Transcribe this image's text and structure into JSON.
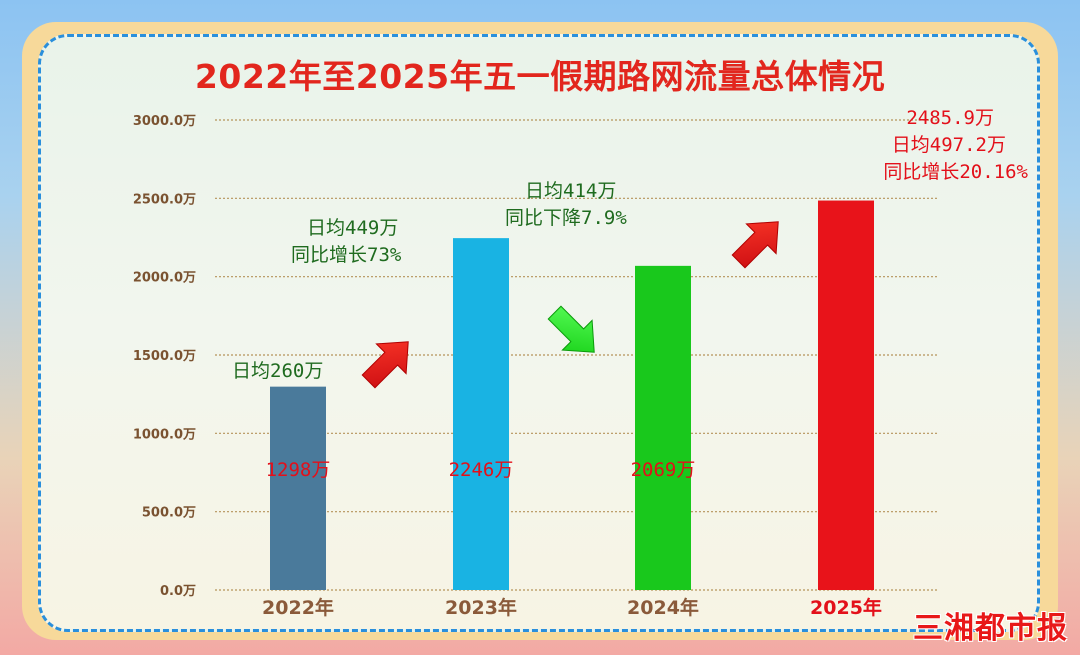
{
  "title": "2022年至2025年五一假期路网流量总体情况",
  "watermark": "三湘都市报",
  "chart_data": {
    "type": "bar",
    "categories": [
      "2022年",
      "2023年",
      "2024年",
      "2025年"
    ],
    "values": [
      1298,
      2246,
      2069,
      2485.9
    ],
    "value_labels": [
      "1298万",
      "2246万",
      "2069万",
      ""
    ],
    "bar_colors": [
      "#4a7a9b",
      "#19b3e3",
      "#19c81c",
      "#e8131a"
    ],
    "category_label_colors": [
      "#8a5a3a",
      "#8a5a3a",
      "#8a5a3a",
      "#e3101a"
    ],
    "y_ticks": [
      "0.0万",
      "500.0万",
      "1000.0万",
      "1500.0万",
      "2000.0万",
      "2500.0万",
      "3000.0万"
    ],
    "ylim": [
      0,
      3000
    ],
    "grid": true,
    "annotations": [
      {
        "lines": [
          "日均260万"
        ],
        "color": "green"
      },
      {
        "lines": [
          "日均449万",
          "同比增长73%"
        ],
        "color": "green"
      },
      {
        "lines": [
          "日均414万",
          "同比下降7.9%"
        ],
        "color": "green"
      },
      {
        "lines": [
          "2485.9万",
          "日均497.2万",
          "同比增长20.16%"
        ],
        "color": "red"
      }
    ],
    "arrows": [
      {
        "direction": "up",
        "color": "#e8131a"
      },
      {
        "direction": "down",
        "color": "#22ee22"
      },
      {
        "direction": "up",
        "color": "#e8131a"
      }
    ]
  }
}
